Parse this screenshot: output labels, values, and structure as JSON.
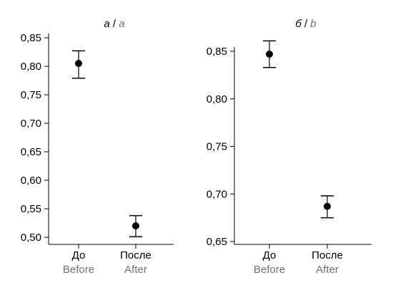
{
  "chart_data": [
    {
      "type": "scatter",
      "error_bars": true,
      "title_ru": "а",
      "title_sep": " / ",
      "title_en": "a",
      "categories": [
        {
          "ru": "До",
          "en": "Before"
        },
        {
          "ru": "После",
          "en": "After"
        }
      ],
      "points": [
        {
          "value": 0.805,
          "upper": 0.827,
          "lower": 0.779
        },
        {
          "value": 0.52,
          "upper": 0.538,
          "lower": 0.501
        }
      ],
      "ylim": [
        0.5,
        0.85
      ],
      "yticks": [
        0.5,
        0.55,
        0.6,
        0.65,
        0.7,
        0.75,
        0.8,
        0.85
      ],
      "ytick_labels": [
        "0,50",
        "0,55",
        "0,60",
        "0,65",
        "0,70",
        "0,75",
        "0,80",
        "0,85"
      ],
      "grid": false,
      "marker_color": "#000000"
    },
    {
      "type": "scatter",
      "error_bars": true,
      "title_ru": "б",
      "title_sep": " / ",
      "title_en": "b",
      "categories": [
        {
          "ru": "До",
          "en": "Before"
        },
        {
          "ru": "После",
          "en": "After"
        }
      ],
      "points": [
        {
          "value": 0.847,
          "upper": 0.861,
          "lower": 0.833
        },
        {
          "value": 0.687,
          "upper": 0.698,
          "lower": 0.675
        }
      ],
      "ylim": [
        0.65,
        0.85
      ],
      "yticks": [
        0.65,
        0.7,
        0.75,
        0.8,
        0.85
      ],
      "ytick_labels": [
        "0,65",
        "0,70",
        "0,75",
        "0,80",
        "0,85"
      ],
      "grid": false,
      "marker_color": "#000000"
    }
  ]
}
